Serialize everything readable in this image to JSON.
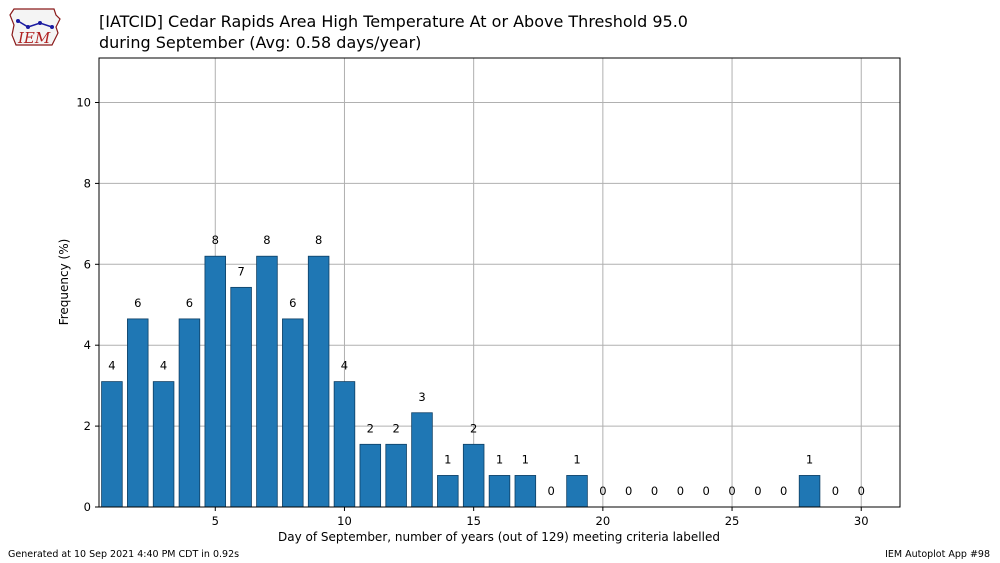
{
  "logo": {
    "text": "IEM"
  },
  "footer": {
    "left": "Generated at 10 Sep 2021 4:40 PM CDT in 0.92s",
    "right": "IEM Autoplot App #98"
  },
  "chart_data": {
    "type": "bar",
    "title": "[IATCID] Cedar Rapids Area High Temperature At or Above Threshold 95.0",
    "subtitle": "during September (Avg: 0.58 days/year)",
    "xlabel": "Day of September, number of years (out of 129) meeting criteria labelled",
    "ylabel": "Frequency (%)",
    "xlim": [
      0.5,
      31.5
    ],
    "ylim": [
      0,
      11.1
    ],
    "xticks": [
      5,
      10,
      15,
      20,
      25,
      30
    ],
    "yticks": [
      0,
      2,
      4,
      6,
      8,
      10
    ],
    "grid": true,
    "bar_color": "#1f77b4",
    "x": [
      1,
      2,
      3,
      4,
      5,
      6,
      7,
      8,
      9,
      10,
      11,
      12,
      13,
      14,
      15,
      16,
      17,
      18,
      19,
      20,
      21,
      22,
      23,
      24,
      25,
      26,
      27,
      28,
      29,
      30
    ],
    "counts": [
      4,
      6,
      4,
      6,
      8,
      7,
      8,
      6,
      8,
      4,
      2,
      2,
      3,
      1,
      2,
      1,
      1,
      0,
      1,
      0,
      0,
      0,
      0,
      0,
      0,
      0,
      0,
      1,
      0,
      0
    ],
    "values": [
      3.1,
      4.65,
      3.1,
      4.65,
      6.2,
      5.43,
      6.2,
      4.65,
      6.2,
      3.1,
      1.55,
      1.55,
      2.33,
      0.78,
      1.55,
      0.78,
      0.78,
      0,
      0.78,
      0,
      0,
      0,
      0,
      0,
      0,
      0,
      0,
      0.78,
      0,
      0
    ]
  }
}
